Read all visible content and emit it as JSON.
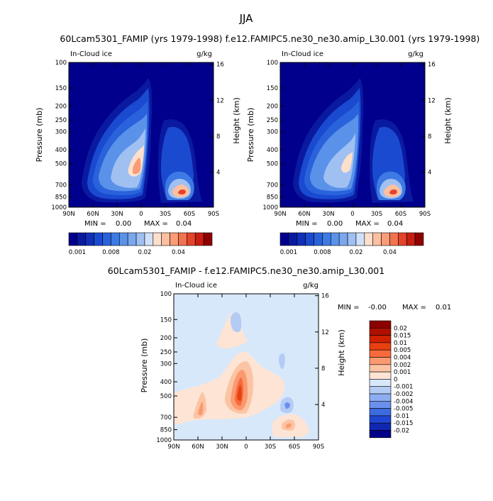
{
  "chart_data": [
    {
      "type": "contour",
      "title": "60Lcam5301_FAMIP (yrs 1979-1998)",
      "field_label": "In-Cloud ice",
      "units": "g/kg",
      "ylabel": "Pressure (mb)",
      "y2label": "Height (km)",
      "x_ticks": [
        "90N",
        "60N",
        "30N",
        "0",
        "30S",
        "60S",
        "90S"
      ],
      "y_ticks": [
        "100",
        "150",
        "200",
        "250",
        "300",
        "400",
        "500",
        "700",
        "850",
        "1000"
      ],
      "y2_ticks": [
        "16",
        "12",
        "8",
        "4"
      ],
      "min_label": "MIN =",
      "min_value": "0.00",
      "max_label": "MAX =",
      "max_value": "0.04",
      "colorbar_levels": [
        0.001,
        0.002,
        0.004,
        0.006,
        0.008,
        0.01,
        0.012,
        0.014,
        0.016,
        0.02,
        0.024,
        0.028,
        0.032,
        0.04,
        0.048,
        0.056
      ],
      "colorbar_labels": [
        "0.001",
        "0.008",
        "0.02",
        "0.04"
      ]
    },
    {
      "type": "contour",
      "title": "f.e12.FAMIPC5.ne30_ne30.amip_L30.001 (yrs 1979-1998)",
      "field_label": "In-Cloud ice",
      "units": "g/kg",
      "ylabel": "Pressure (mb)",
      "y2label": "Height (km)",
      "x_ticks": [
        "90N",
        "60N",
        "30N",
        "0",
        "30S",
        "60S",
        "90S"
      ],
      "y_ticks": [
        "100",
        "150",
        "200",
        "250",
        "300",
        "400",
        "500",
        "700",
        "850",
        "1000"
      ],
      "y2_ticks": [
        "16",
        "12",
        "8",
        "4"
      ],
      "min_label": "MIN =",
      "min_value": "0.00",
      "max_label": "MAX =",
      "max_value": "0.04",
      "colorbar_levels": [
        0.001,
        0.002,
        0.004,
        0.006,
        0.008,
        0.01,
        0.012,
        0.014,
        0.016,
        0.02,
        0.024,
        0.028,
        0.032,
        0.04,
        0.048,
        0.056
      ],
      "colorbar_labels": [
        "0.001",
        "0.008",
        "0.02",
        "0.04"
      ]
    },
    {
      "type": "contour",
      "title": "60Lcam5301_FAMIP - f.e12.FAMIPC5.ne30_ne30.amip_L30.001",
      "field_label": "In-Cloud ice",
      "units": "g/kg",
      "ylabel": "Pressure (mb)",
      "y2label": "Height (km)",
      "x_ticks": [
        "90N",
        "60N",
        "30N",
        "0",
        "30S",
        "60S",
        "90S"
      ],
      "y_ticks": [
        "100",
        "150",
        "200",
        "250",
        "300",
        "400",
        "500",
        "700",
        "850",
        "1000"
      ],
      "y2_ticks": [
        "16",
        "12",
        "8",
        "4"
      ],
      "min_label": "MIN =",
      "min_value": "-0.00",
      "max_label": "MAX =",
      "max_value": "0.01",
      "colorbar_levels": [
        0.02,
        0.015,
        0.01,
        0.005,
        0.004,
        0.002,
        0.001,
        0,
        -0.001,
        -0.002,
        -0.004,
        -0.005,
        -0.01,
        -0.015,
        -0.02
      ],
      "colorbar_labels": [
        "0.02",
        "0.015",
        "0.01",
        "0.005",
        "0.004",
        "0.002",
        "0.001",
        "0",
        "-0.001",
        "-0.002",
        "-0.004",
        "-0.005",
        "-0.01",
        "-0.015",
        "-0.02"
      ]
    }
  ],
  "page": {
    "title": "JJA"
  },
  "colors": {
    "background_low": "#00008c",
    "diff_background": "#d8e8fb",
    "seq_palette": [
      "#00008c",
      "#0a1aa0",
      "#1030b8",
      "#1a4ad0",
      "#2a62dc",
      "#3d7ae4",
      "#5a92ea",
      "#7aa8ee",
      "#a0c0f2",
      "#cfe0fa",
      "#fde0cc",
      "#fcc0a0",
      "#f99c78",
      "#f27350",
      "#e3442a",
      "#c81e12",
      "#8f0000"
    ],
    "diff_palette": [
      "#8c0000",
      "#b01000",
      "#d02000",
      "#e84010",
      "#f86a3c",
      "#fa9a70",
      "#fcc4a4",
      "#fde4d4",
      "#d8e8fb",
      "#b4ccf4",
      "#8caef0",
      "#6a90ec",
      "#3c6ae0",
      "#2046d0",
      "#1028b0",
      "#000088"
    ]
  }
}
